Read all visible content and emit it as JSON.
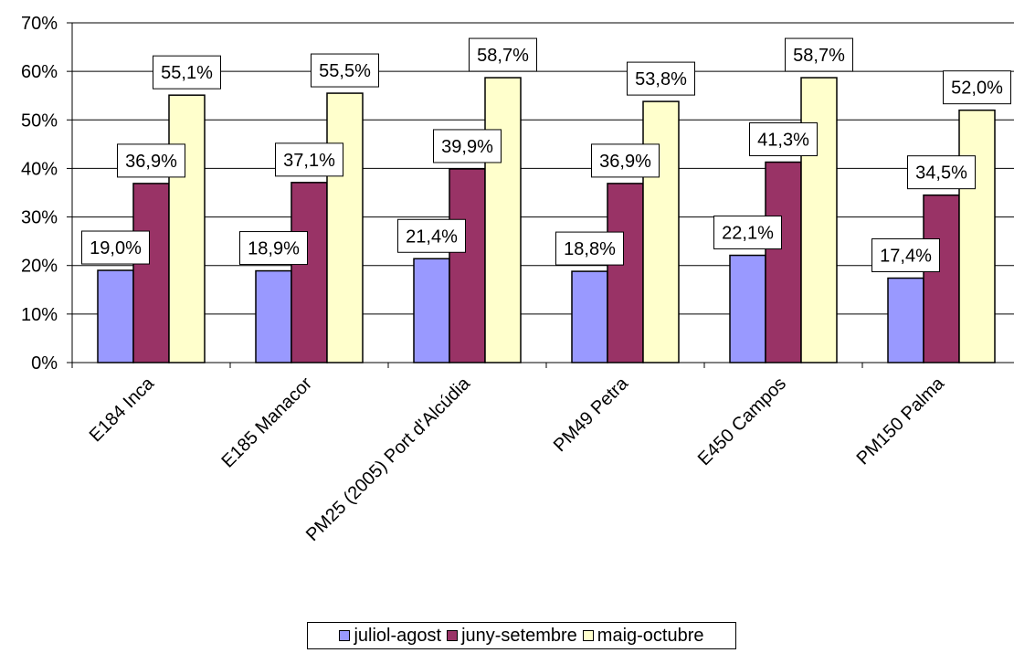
{
  "chart_data": {
    "type": "bar",
    "title": "",
    "xlabel": "",
    "ylabel": "",
    "ylim": [
      0,
      70
    ],
    "yticks": [
      "0%",
      "10%",
      "20%",
      "30%",
      "40%",
      "50%",
      "60%",
      "70%"
    ],
    "grid": true,
    "legend_position": "bottom",
    "categories": [
      "E184 Inca",
      "E185 Manacor",
      "PM25 (2005) Port d'Alcúdia",
      "PM49 Petra",
      "E450 Campos",
      "PM150 Palma"
    ],
    "series": [
      {
        "name": "juliol-agost",
        "color": "#9999ff",
        "values": [
          19.0,
          18.9,
          21.4,
          18.8,
          22.1,
          17.4
        ],
        "labels": [
          "19,0%",
          "18,9%",
          "21,4%",
          "18,8%",
          "22,1%",
          "17,4%"
        ]
      },
      {
        "name": "juny-setembre",
        "color": "#993366",
        "values": [
          36.9,
          37.1,
          39.9,
          36.9,
          41.3,
          34.5
        ],
        "labels": [
          "36,9%",
          "37,1%",
          "39,9%",
          "36,9%",
          "41,3%",
          "34,5%"
        ]
      },
      {
        "name": "maig-octubre",
        "color": "#ffffcc",
        "values": [
          55.1,
          55.5,
          58.7,
          53.8,
          58.7,
          52.0
        ],
        "labels": [
          "55,1%",
          "55,5%",
          "58,7%",
          "53,8%",
          "58,7%",
          "52,0%"
        ]
      }
    ]
  }
}
